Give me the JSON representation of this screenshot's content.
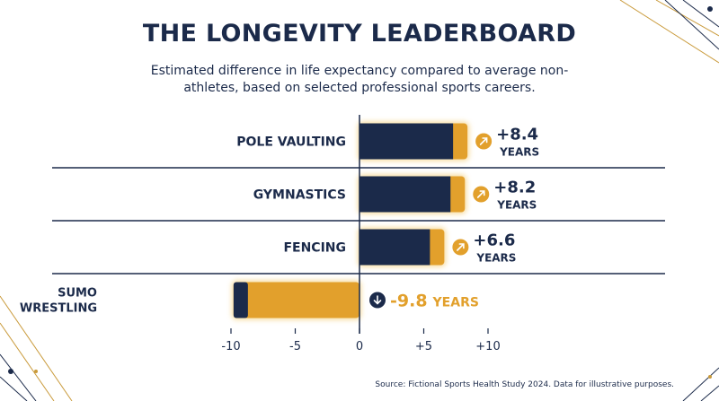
{
  "title": "THE LONGEVITY LEADERBOARD",
  "subtitle": "Estimated difference in life expectancy compared to average non-athletes, based on selected professional sports careers.",
  "source": "Source: Fictional Sports Health Study 2024. Data for illustrative purposes.",
  "colors": {
    "navy": "#1b2a4a",
    "gold": "#e2a02c",
    "gold_glow": "#f6d58a"
  },
  "chart_data": {
    "type": "bar",
    "orientation": "horizontal",
    "categories": [
      "POLE VAULTING",
      "GYMNASTICS",
      "FENCING",
      "SUMO WRESTLING"
    ],
    "values": [
      8.4,
      8.2,
      6.6,
      -9.8
    ],
    "value_labels": [
      {
        "number": "+8.4",
        "unit": "YEARS",
        "icon": "arrow-up-right-icon"
      },
      {
        "number": "+8.2",
        "unit": "YEARS",
        "icon": "arrow-up-right-icon"
      },
      {
        "number": "+6.6",
        "unit": "YEARS",
        "icon": "arrow-up-right-icon"
      },
      {
        "number": "-9.8",
        "unit": "YEARS",
        "icon": "arrow-down-icon"
      }
    ],
    "xlim": [
      -10,
      10
    ],
    "xticks": [
      -10,
      -5,
      0,
      5,
      10
    ],
    "xtick_labels": [
      "-10",
      "-5",
      "0",
      "+5",
      "+10"
    ],
    "grid": false
  }
}
